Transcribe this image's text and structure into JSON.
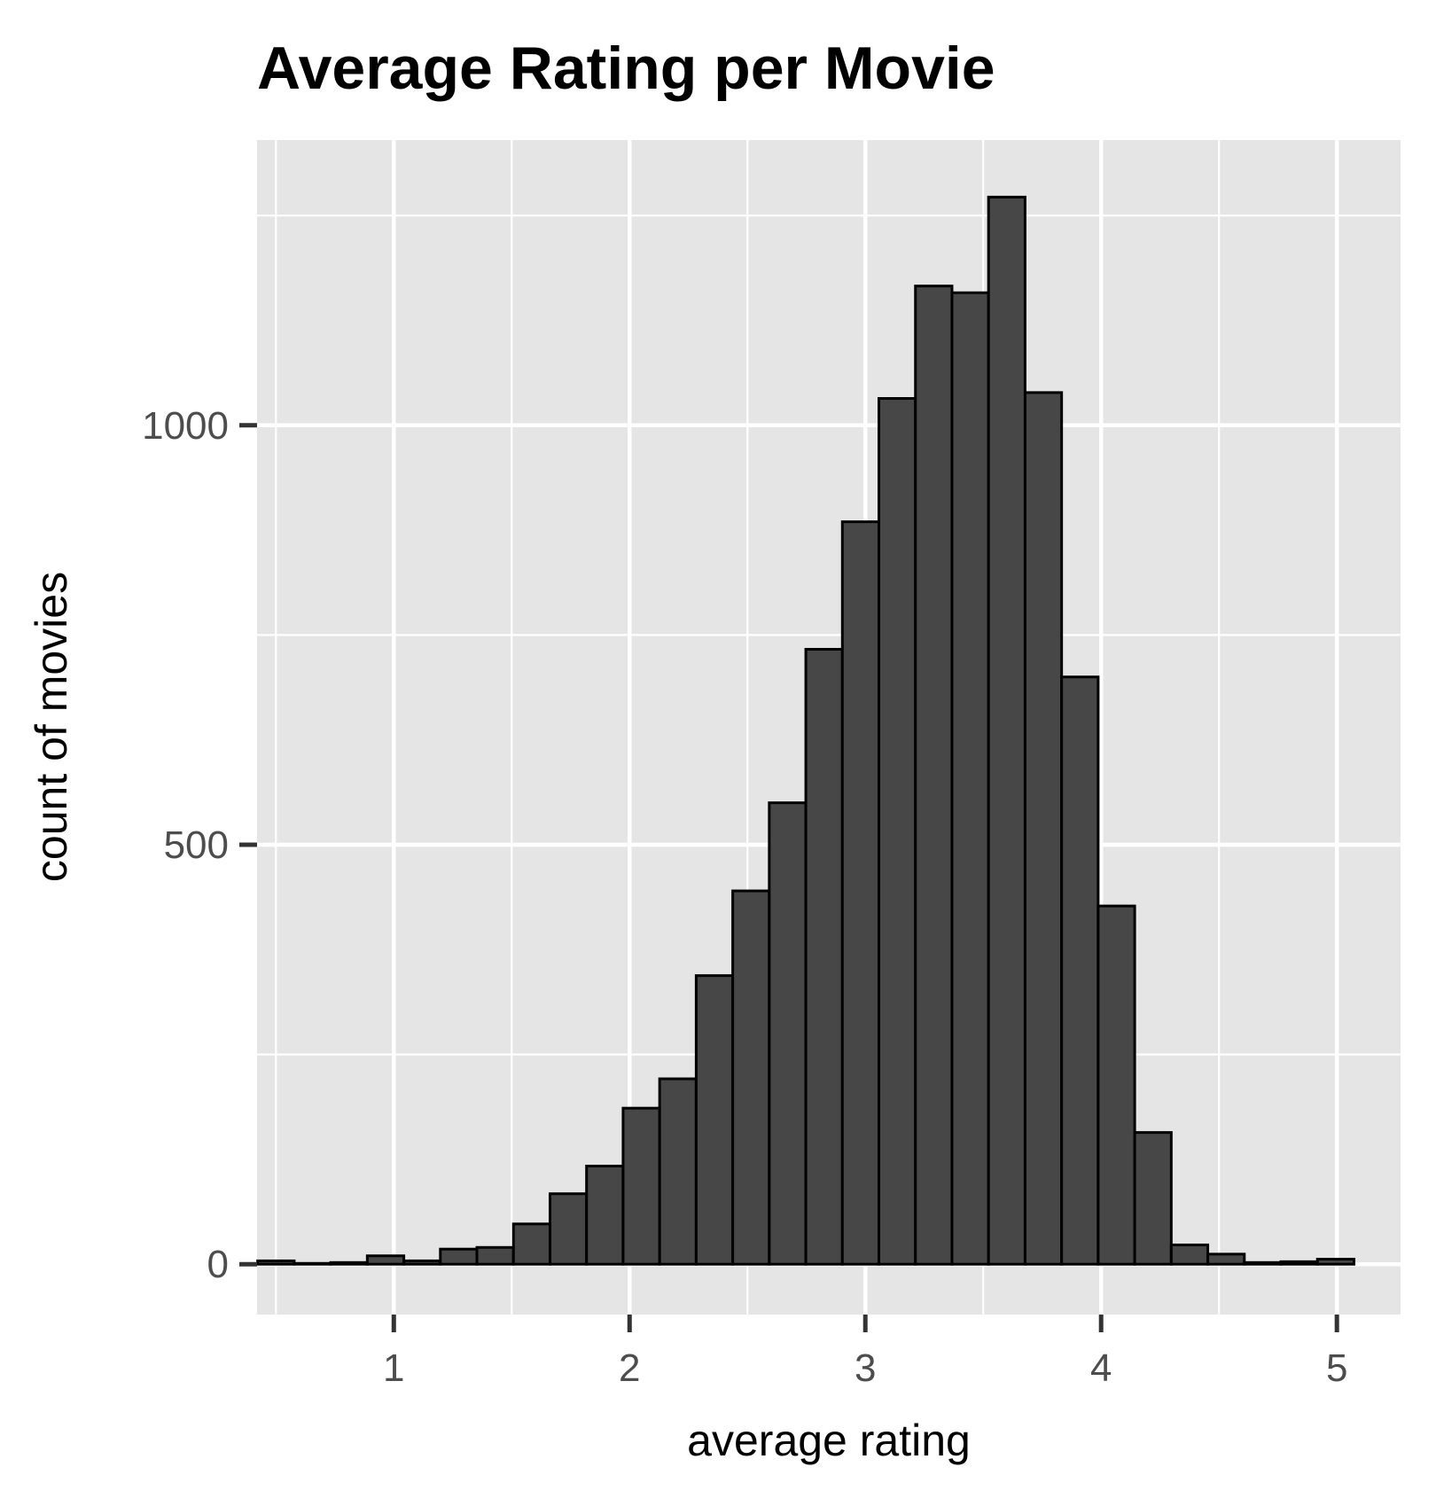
{
  "chart_data": {
    "type": "bar",
    "title": "Average Rating per Movie",
    "xlabel": "average rating",
    "ylabel": "count of movies",
    "bin_width": 0.155,
    "bins": [
      {
        "x": 0.5,
        "count": 4
      },
      {
        "x": 0.655,
        "count": 1
      },
      {
        "x": 0.81,
        "count": 2
      },
      {
        "x": 0.965,
        "count": 10
      },
      {
        "x": 1.12,
        "count": 4
      },
      {
        "x": 1.275,
        "count": 18
      },
      {
        "x": 1.43,
        "count": 20
      },
      {
        "x": 1.585,
        "count": 48
      },
      {
        "x": 1.74,
        "count": 84
      },
      {
        "x": 1.895,
        "count": 117
      },
      {
        "x": 2.05,
        "count": 186
      },
      {
        "x": 2.205,
        "count": 221
      },
      {
        "x": 2.36,
        "count": 344
      },
      {
        "x": 2.515,
        "count": 445
      },
      {
        "x": 2.67,
        "count": 550
      },
      {
        "x": 2.825,
        "count": 733
      },
      {
        "x": 2.98,
        "count": 885
      },
      {
        "x": 3.135,
        "count": 1032
      },
      {
        "x": 3.29,
        "count": 1166
      },
      {
        "x": 3.445,
        "count": 1158
      },
      {
        "x": 3.6,
        "count": 1272
      },
      {
        "x": 3.755,
        "count": 1039
      },
      {
        "x": 3.91,
        "count": 700
      },
      {
        "x": 4.065,
        "count": 427
      },
      {
        "x": 4.22,
        "count": 157
      },
      {
        "x": 4.375,
        "count": 23
      },
      {
        "x": 4.53,
        "count": 12
      },
      {
        "x": 4.685,
        "count": 2
      },
      {
        "x": 4.84,
        "count": 3
      },
      {
        "x": 4.995,
        "count": 6
      }
    ],
    "xlim": [
      0.42,
      5.27
    ],
    "ylim": [
      -60,
      1340
    ],
    "xticks": [
      {
        "value": 1,
        "label": "1"
      },
      {
        "value": 2,
        "label": "2"
      },
      {
        "value": 3,
        "label": "3"
      },
      {
        "value": 4,
        "label": "4"
      },
      {
        "value": 5,
        "label": "5"
      }
    ],
    "yticks": [
      {
        "value": 0,
        "label": "0"
      },
      {
        "value": 500,
        "label": "500"
      },
      {
        "value": 1000,
        "label": "1000"
      }
    ],
    "x_minor_gridlines": [
      0.5,
      1.5,
      2.5,
      3.5,
      4.5
    ],
    "y_minor_gridlines": [
      250,
      750,
      1250
    ],
    "grid": true,
    "legend": "none",
    "colors": {
      "panel_background": "#e5e5e5",
      "grid": "#ffffff",
      "bar_fill": "#474747",
      "bar_outline": "#000000",
      "tick_label": "#4d4d4d"
    }
  }
}
